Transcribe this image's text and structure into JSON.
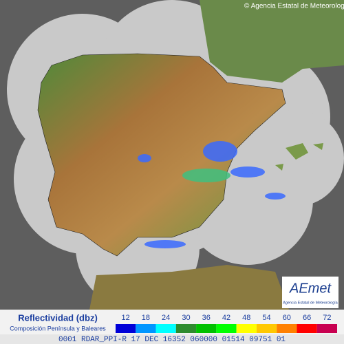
{
  "copyright": "© Agencia Estatal de Meteorología",
  "logo": {
    "name": "AEmet",
    "subtitle": "Agencia Estatal de Meteorología"
  },
  "legend": {
    "title": "Reflectividad (dbz)",
    "subtitle": "Composición Península y Baleares",
    "ticks": [
      12,
      18,
      24,
      30,
      36,
      42,
      48,
      54,
      60,
      66,
      72
    ],
    "colors": [
      "#0000d8",
      "#0096ff",
      "#00ffff",
      "#2e8b2e",
      "#00c000",
      "#00ff00",
      "#ffff00",
      "#ffc800",
      "#ff8000",
      "#ff0000",
      "#c80050"
    ]
  },
  "status_bar": "0001 RDAR_PPI-R 17 DEC 16352 060000 01514 09751 01"
}
